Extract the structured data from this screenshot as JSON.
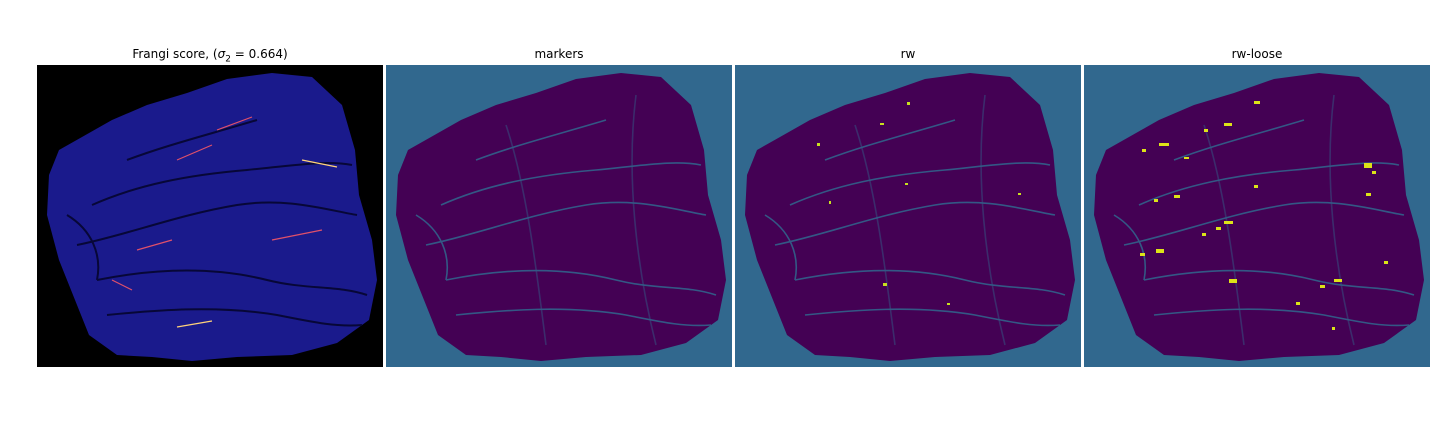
{
  "figure": {
    "panels": [
      {
        "id": "frangi",
        "title_prefix": "Frangi score, (",
        "sigma_symbol": "σ",
        "sigma_subscript": "2",
        "title_suffix": " = 0.664)",
        "background": "#000000",
        "tissue_color": "#1a1a8c",
        "highlight_colors": [
          "#e0506a",
          "#ffd27a"
        ]
      },
      {
        "id": "markers",
        "title": "markers",
        "background": "#31688e",
        "tissue_color": "#440154",
        "highlight_colors": []
      },
      {
        "id": "rw",
        "title": "rw",
        "background": "#31688e",
        "tissue_color": "#440154",
        "highlight_colors": [
          "#c8e020"
        ]
      },
      {
        "id": "rw-loose",
        "title": "rw-loose",
        "background": "#31688e",
        "tissue_color": "#440154",
        "highlight_colors": [
          "#dde318"
        ]
      }
    ]
  }
}
